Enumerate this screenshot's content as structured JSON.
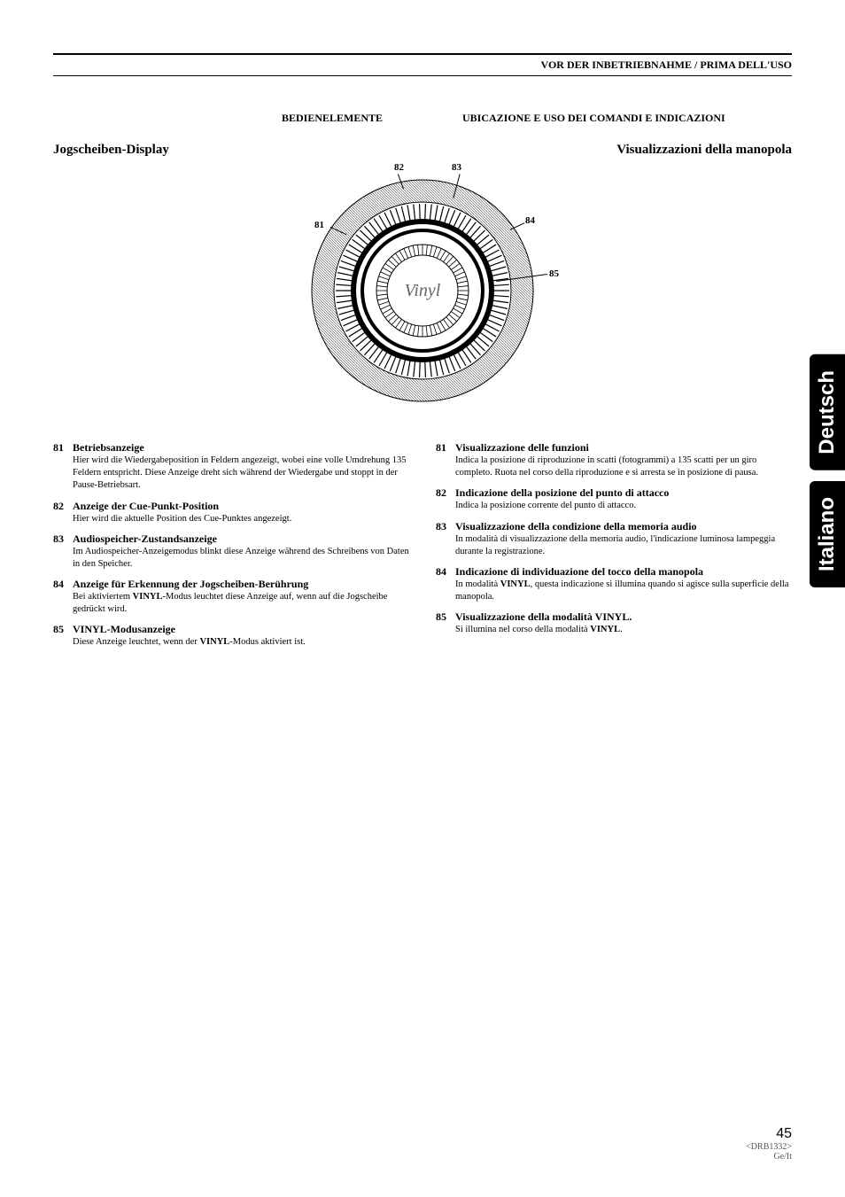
{
  "header": "VOR DER INBETRIEBNAHME / PRIMA DELL'USO",
  "subheader": {
    "left": "BEDIENELEMENTE",
    "right": "UBICAZIONE E USO DEI COMANDI E INDICAZIONI"
  },
  "titles": {
    "left": "Jogscheiben-Display",
    "right": "Visualizzazioni della manopola"
  },
  "diagram": {
    "center_label": "Vinyl",
    "callouts": {
      "81": "81",
      "82": "82",
      "83": "83",
      "84": "84",
      "85": "85"
    }
  },
  "left_col": [
    {
      "num": "81",
      "title": "Betriebsanzeige",
      "body": "Hier wird die Wiedergabeposition in Feldern angezeigt, wobei eine volle Umdrehung 135 Feldern entspricht. Diese Anzeige dreht sich während der Wiedergabe und stoppt in der Pause-Betriebsart."
    },
    {
      "num": "82",
      "title": "Anzeige der Cue-Punkt-Position",
      "body": "Hier wird die aktuelle Position des Cue-Punktes angezeigt."
    },
    {
      "num": "83",
      "title": "Audiospeicher-Zustandsanzeige",
      "body": "Im Audiospeicher-Anzeigemodus blinkt diese Anzeige während des Schreibens von Daten in den Speicher."
    },
    {
      "num": "84",
      "title": "Anzeige für Erkennung der Jogscheiben-Berührung",
      "body": "Bei aktiviertem VINYL-Modus leuchtet diese Anzeige auf, wenn auf die Jogscheibe gedrückt wird."
    },
    {
      "num": "85",
      "title": "VINYL-Modusanzeige",
      "body": "Diese Anzeige leuchtet, wenn der VINYL-Modus aktiviert ist."
    }
  ],
  "right_col": [
    {
      "num": "81",
      "title": "Visualizzazione delle funzioni",
      "body": "Indica la posizione di riproduzione in scatti (fotogrammi) a 135 scatti per un giro completo. Ruota nel corso della riproduzione e si arresta se in posizione di pausa."
    },
    {
      "num": "82",
      "title": "Indicazione della posizione del punto di attacco",
      "body": "Indica la posizione corrente del punto di attacco."
    },
    {
      "num": "83",
      "title": "Visualizzazione della condizione della memoria audio",
      "body": "In modalità di visualizzazione della memoria audio, l'indicazione luminosa lampeggia durante la registrazione."
    },
    {
      "num": "84",
      "title": "Indicazione di individuazione del tocco della manopola",
      "body": "In modalità VINYL, questa indicazione si illumina quando si agisce sulla superficie della manopola."
    },
    {
      "num": "85",
      "title": "Visualizzazione della modalità VINYL.",
      "body": "Si illumina nel corso della modalità VINYL."
    }
  ],
  "tabs": {
    "de": "Deutsch",
    "it": "Italiano"
  },
  "footer": {
    "page": "45",
    "code": "<DRB1332>",
    "langs": "Ge/It"
  }
}
